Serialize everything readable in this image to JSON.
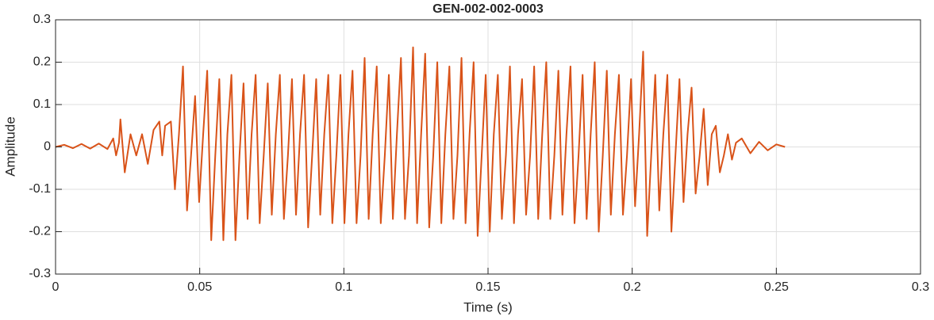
{
  "chart_data": {
    "type": "line",
    "title": "GEN-002-002-0003",
    "xlabel": "Time (s)",
    "ylabel": "Amplitude",
    "color": "#d95319",
    "grid": true,
    "xlim": [
      0,
      0.3
    ],
    "xticks": [
      0,
      0.05,
      0.1,
      0.15,
      0.2,
      0.25,
      0.3
    ],
    "ylim": [
      -0.3,
      0.3
    ],
    "yticks": [
      -0.3,
      -0.2,
      -0.1,
      0,
      0.1,
      0.2,
      0.3
    ],
    "x": [
      0,
      0.003,
      0.006,
      0.009,
      0.012,
      0.015,
      0.018,
      0.02,
      0.021,
      0.022,
      0.0225,
      0.024,
      0.026,
      0.028,
      0.03,
      0.032,
      0.034,
      0.036,
      0.037,
      0.038,
      0.04,
      0.0414,
      0.0428,
      0.0442,
      0.0456,
      0.047,
      0.0484,
      0.0498,
      0.0512,
      0.0526,
      0.054,
      0.0554,
      0.0568,
      0.0582,
      0.0596,
      0.061,
      0.0624,
      0.0638,
      0.0652,
      0.0666,
      0.068,
      0.0694,
      0.0708,
      0.0722,
      0.0736,
      0.075,
      0.0764,
      0.0778,
      0.0792,
      0.0806,
      0.082,
      0.0834,
      0.0848,
      0.0862,
      0.0876,
      0.089,
      0.0904,
      0.0918,
      0.0932,
      0.0946,
      0.096,
      0.0974,
      0.0988,
      0.1002,
      0.1016,
      0.103,
      0.1044,
      0.1058,
      0.1072,
      0.1086,
      0.11,
      0.1114,
      0.1128,
      0.1142,
      0.1156,
      0.117,
      0.1184,
      0.1198,
      0.1212,
      0.1226,
      0.124,
      0.1254,
      0.1268,
      0.1282,
      0.1296,
      0.131,
      0.1324,
      0.1338,
      0.1352,
      0.1366,
      0.138,
      0.1394,
      0.1408,
      0.1422,
      0.1436,
      0.145,
      0.1464,
      0.1478,
      0.1492,
      0.1506,
      0.152,
      0.1534,
      0.1548,
      0.1562,
      0.1576,
      0.159,
      0.1604,
      0.1618,
      0.1632,
      0.1646,
      0.166,
      0.1674,
      0.1688,
      0.1702,
      0.1716,
      0.173,
      0.1744,
      0.1758,
      0.1772,
      0.1786,
      0.18,
      0.1814,
      0.1828,
      0.1842,
      0.1856,
      0.187,
      0.1884,
      0.1898,
      0.1912,
      0.1926,
      0.194,
      0.1954,
      0.1968,
      0.1982,
      0.1996,
      0.201,
      0.2024,
      0.2038,
      0.2052,
      0.2066,
      0.208,
      0.2094,
      0.2108,
      0.2122,
      0.2136,
      0.215,
      0.2164,
      0.2178,
      0.2192,
      0.2206,
      0.222,
      0.2234,
      0.2248,
      0.2262,
      0.2276,
      0.229,
      0.2304,
      0.2318,
      0.2332,
      0.2346,
      0.236,
      0.238,
      0.241,
      0.244,
      0.247,
      0.25,
      0.253
    ],
    "values": [
      0,
      0.005,
      -0.003,
      0.007,
      -0.004,
      0.008,
      -0.005,
      0.02,
      -0.02,
      0.01,
      0.065,
      -0.06,
      0.03,
      -0.02,
      0.03,
      -0.04,
      0.04,
      0.06,
      -0.02,
      0.05,
      0.06,
      -0.1,
      0.03,
      0.19,
      -0.15,
      -0.02,
      0.12,
      -0.13,
      0.03,
      0.18,
      -0.22,
      -0.02,
      0.16,
      -0.22,
      0.03,
      0.17,
      -0.22,
      -0.02,
      0.15,
      -0.17,
      0.03,
      0.17,
      -0.18,
      -0.02,
      0.15,
      -0.16,
      0.03,
      0.17,
      -0.17,
      -0.02,
      0.16,
      -0.16,
      0.03,
      0.17,
      -0.19,
      -0.02,
      0.16,
      -0.16,
      0.03,
      0.17,
      -0.18,
      -0.02,
      0.17,
      -0.18,
      0.03,
      0.18,
      -0.18,
      -0.02,
      0.21,
      -0.17,
      0.03,
      0.19,
      -0.18,
      -0.02,
      0.17,
      -0.17,
      0.03,
      0.21,
      -0.17,
      -0.02,
      0.235,
      -0.18,
      0.03,
      0.22,
      -0.19,
      -0.02,
      0.2,
      -0.18,
      0.03,
      0.19,
      -0.17,
      -0.02,
      0.21,
      -0.18,
      0.03,
      0.2,
      -0.21,
      -0.02,
      0.17,
      -0.2,
      0.03,
      0.17,
      -0.17,
      -0.02,
      0.19,
      -0.18,
      0.03,
      0.16,
      -0.16,
      -0.02,
      0.19,
      -0.17,
      0.03,
      0.2,
      -0.17,
      -0.02,
      0.18,
      -0.16,
      0.03,
      0.19,
      -0.18,
      -0.02,
      0.17,
      -0.17,
      0.03,
      0.2,
      -0.2,
      -0.02,
      0.18,
      -0.16,
      0.03,
      0.17,
      -0.16,
      -0.02,
      0.16,
      -0.14,
      0.03,
      0.225,
      -0.21,
      -0.02,
      0.17,
      -0.15,
      0.03,
      0.17,
      -0.2,
      -0.02,
      0.16,
      -0.13,
      0.03,
      0.14,
      -0.11,
      -0.02,
      0.09,
      -0.09,
      0.03,
      0.05,
      -0.06,
      -0.02,
      0.03,
      -0.03,
      0.01,
      0.02,
      -0.015,
      0.012,
      -0.008,
      0.006,
      0
    ]
  }
}
